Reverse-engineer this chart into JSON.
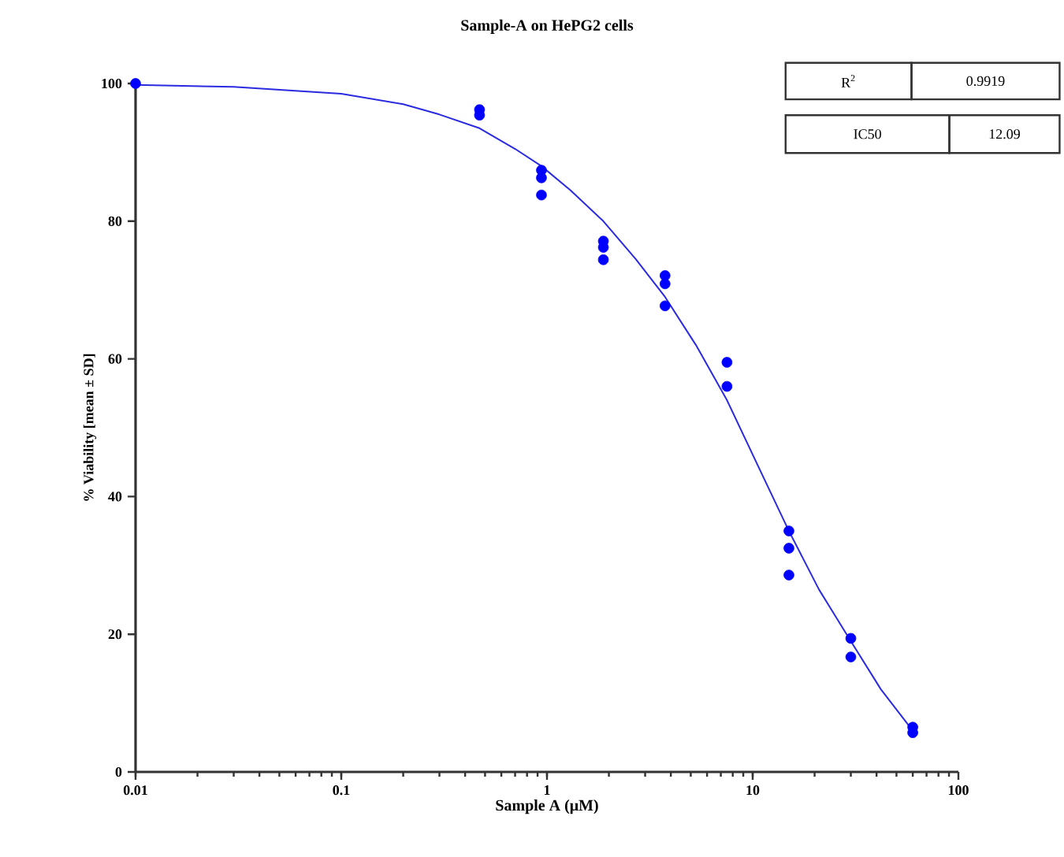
{
  "chart_data": {
    "type": "scatter",
    "title": "Sample-A on HePG2 cells",
    "xlabel": "Sample A (μM)",
    "ylabel": "% Viability [mean ± SD]",
    "log": "x",
    "xlim": [
      0.01,
      100
    ],
    "ylim": [
      0,
      100
    ],
    "xticks": [
      0.01,
      0.1,
      1,
      10,
      100
    ],
    "yticks": [
      0,
      20,
      40,
      60,
      80,
      100
    ],
    "grid": false,
    "annotations": [
      "R$^{2}$",
      "0.9919",
      "IC50",
      "12.09"
    ],
    "series": [
      {
        "marker": "circle",
        "color": "#0000ff",
        "x": [
          0.01,
          0.47,
          0.47,
          0.94,
          0.94,
          0.94,
          1.88,
          1.88,
          1.88,
          3.75,
          3.75,
          3.75,
          7.5,
          7.5,
          15,
          15,
          15,
          30,
          30,
          60,
          60
        ],
        "values": [
          100,
          96.2,
          95.4,
          87.4,
          86.3,
          83.8,
          77.1,
          76.2,
          74.4,
          72.1,
          70.9,
          67.7,
          59.5,
          56,
          35,
          32.5,
          28.6,
          19.4,
          16.7,
          6.5,
          5.7
        ]
      },
      {
        "type": "line",
        "marker": "none",
        "line_style": "solid",
        "color": "#2a2ae0",
        "x": [
          0.01,
          0.03,
          0.1,
          0.2,
          0.3,
          0.47,
          0.7,
          0.94,
          1.3,
          1.88,
          2.7,
          3.75,
          5.3,
          7.5,
          10.6,
          15,
          21,
          30,
          42,
          60
        ],
        "values": [
          99.8,
          99.5,
          98.5,
          97,
          95.5,
          93.5,
          90.5,
          88,
          84.5,
          80,
          74.5,
          69,
          62,
          54,
          44.5,
          35,
          26.5,
          19,
          12,
          6
        ]
      }
    ]
  }
}
